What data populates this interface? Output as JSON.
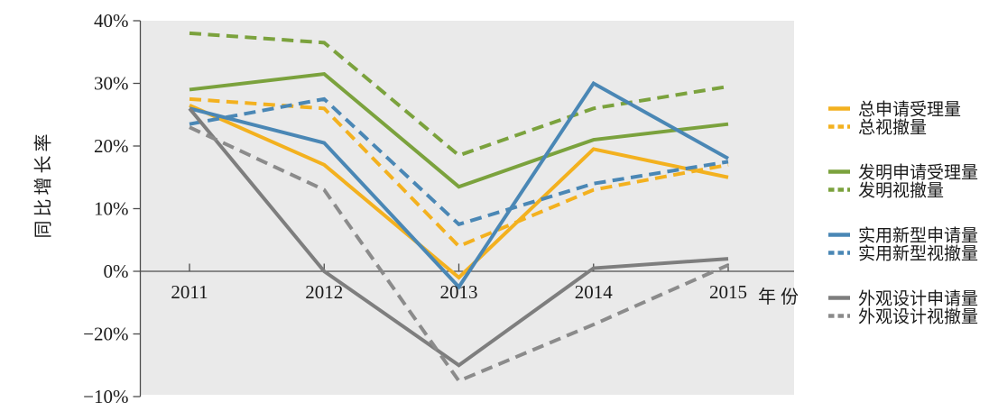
{
  "chart_data": {
    "type": "line",
    "x": [
      2011,
      2012,
      2013,
      2014,
      2015
    ],
    "xlabel": "年份",
    "ylabel": "同比增长率",
    "unit": "%",
    "ylim": [
      -20,
      40
    ],
    "ytick_interval": 10,
    "ytick_labels_top_to_bottom": [
      "40%",
      "30%",
      "20%",
      "10%",
      "0%",
      "−20%",
      "−10%"
    ],
    "grid": false,
    "legend_position": "right",
    "series": [
      {
        "name": "总申请受理量",
        "color": "#F3B11F",
        "dashed": false,
        "values": [
          26.5,
          17,
          -1,
          19.5,
          15
        ]
      },
      {
        "name": "总视撤量",
        "color": "#F3B11F",
        "dashed": true,
        "values": [
          27.5,
          26,
          4,
          13,
          17
        ]
      },
      {
        "name": "发明申请受理量",
        "color": "#7BA23D",
        "dashed": false,
        "values": [
          29,
          31.5,
          13.5,
          21,
          23.5
        ]
      },
      {
        "name": "发明视撤量",
        "color": "#7BA23D",
        "dashed": true,
        "values": [
          38,
          36.5,
          18.5,
          26,
          29.5
        ]
      },
      {
        "name": "实用新型申请量",
        "color": "#4A87B5",
        "dashed": false,
        "values": [
          26,
          20.5,
          -2.5,
          30,
          18
        ]
      },
      {
        "name": "实用新型视撤量",
        "color": "#4A87B5",
        "dashed": true,
        "values": [
          23.5,
          27.5,
          7.5,
          14,
          17.5
        ]
      },
      {
        "name": "外观设计申请量",
        "color": "#7E7E7E",
        "dashed": false,
        "values": [
          26,
          0,
          -15,
          0.5,
          2
        ]
      },
      {
        "name": "外观设计视撤量",
        "color": "#8B8B8B",
        "dashed": true,
        "values": [
          23,
          13,
          -17.5,
          -8.5,
          1
        ]
      }
    ]
  },
  "colors": {
    "plot_background": "#EAEAEA",
    "axis": "#4D4D4D",
    "text": "#1A1A1A"
  }
}
